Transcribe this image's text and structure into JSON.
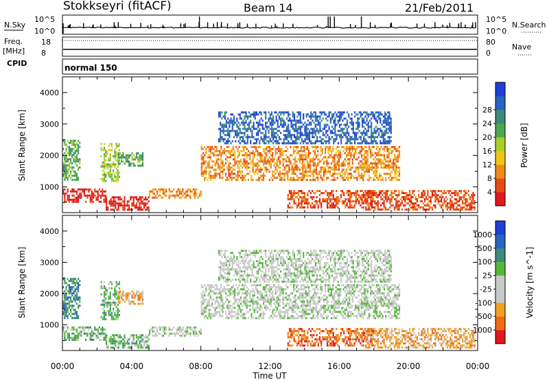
{
  "header": {
    "station": "Stokkseyri (fitACF)",
    "beam": "Beam 14",
    "date": "21/Feb/2011"
  },
  "top_strip": {
    "nsky_label": "N.Sky",
    "nsearch_label": "N.Search",
    "freq_label_1": "Freq.",
    "freq_label_2": "[MHz]",
    "nave_label": "Nave",
    "cpid_label": "CPID",
    "cpid_value": "normal 150",
    "noise_ticks": [
      "10^5",
      "10^0"
    ],
    "freq_ticks": [
      "18",
      "8"
    ],
    "nave_ticks": [
      "80",
      "0"
    ]
  },
  "colors": {
    "power": [
      "#1f3fd6",
      "#2b62c4",
      "#3d8a78",
      "#4fa552",
      "#a8cf2a",
      "#f2c414",
      "#ef8a1a",
      "#e84a14",
      "#e0181c"
    ],
    "velocity": [
      "#1f3fd6",
      "#2b62c4",
      "#3d8a78",
      "#56b83a",
      "#c8c8c8",
      "#c8c8c8",
      "#f0a020",
      "#ef6a14",
      "#e0181c"
    ]
  },
  "chart_data": [
    {
      "type": "heatmap",
      "title": "",
      "xlabel": "Time UT",
      "ylabel": "Slant Range [km]",
      "x_tick_labels": [
        "00:00",
        "04:00",
        "08:00",
        "12:00",
        "16:00",
        "20:00",
        "00:00"
      ],
      "y_tick_labels": [
        "1000",
        "2000",
        "3000",
        "4000"
      ],
      "xlim": [
        0,
        24
      ],
      "ylim": [
        180,
        4500
      ],
      "colorbar_label": "Power [dB]",
      "colorbar_ticks": [
        "4",
        "8",
        "12",
        "16",
        "20",
        "24",
        "28"
      ],
      "scatter_regions": [
        {
          "t0": 0.0,
          "t1": 2.5,
          "r0": 500,
          "r1": 950,
          "level": 8
        },
        {
          "t0": 0.0,
          "t1": 1.0,
          "r0": 1200,
          "r1": 2500,
          "level": 3
        },
        {
          "t0": 2.2,
          "t1": 3.3,
          "r0": 1200,
          "r1": 2400,
          "level": 4
        },
        {
          "t0": 3.2,
          "t1": 4.6,
          "r0": 1700,
          "r1": 2100,
          "level": 3
        },
        {
          "t0": 2.5,
          "t1": 5.0,
          "r0": 300,
          "r1": 700,
          "level": 8
        },
        {
          "t0": 5.0,
          "t1": 8.0,
          "r0": 650,
          "r1": 950,
          "level": 6
        },
        {
          "t0": 8.0,
          "t1": 19.5,
          "r0": 1200,
          "r1": 2300,
          "level": 6
        },
        {
          "t0": 9.0,
          "t1": 19.0,
          "r0": 2400,
          "r1": 3400,
          "level": 1
        },
        {
          "t0": 13.0,
          "t1": 18.0,
          "r0": 350,
          "r1": 900,
          "level": 7
        },
        {
          "t0": 17.5,
          "t1": 23.8,
          "r0": 300,
          "r1": 900,
          "level": 7
        }
      ]
    },
    {
      "type": "heatmap",
      "title": "",
      "xlabel": "Time UT",
      "ylabel": "Slant Range [km]",
      "x_tick_labels": [
        "00:00",
        "04:00",
        "08:00",
        "12:00",
        "16:00",
        "20:00",
        "00:00"
      ],
      "y_tick_labels": [
        "1000",
        "2000",
        "3000",
        "4000"
      ],
      "xlim": [
        0,
        24
      ],
      "ylim": [
        180,
        4500
      ],
      "colorbar_label": "Velocity [m s^-1]",
      "colorbar_ticks": [
        "1000",
        "500",
        "100",
        "25",
        "-25",
        "-100",
        "-500",
        "-1000"
      ],
      "scatter_regions": [
        {
          "t0": 0.0,
          "t1": 2.5,
          "r0": 500,
          "r1": 950,
          "level": 3
        },
        {
          "t0": 0.0,
          "t1": 1.0,
          "r0": 1200,
          "r1": 2500,
          "level": 2
        },
        {
          "t0": 2.2,
          "t1": 3.3,
          "r0": 1200,
          "r1": 2400,
          "level": 3
        },
        {
          "t0": 3.2,
          "t1": 4.6,
          "r0": 1700,
          "r1": 2100,
          "level": 6
        },
        {
          "t0": 2.5,
          "t1": 5.0,
          "r0": 300,
          "r1": 700,
          "level": 3
        },
        {
          "t0": 5.0,
          "t1": 8.0,
          "r0": 650,
          "r1": 950,
          "level": 4
        },
        {
          "t0": 8.0,
          "t1": 19.5,
          "r0": 1200,
          "r1": 2300,
          "level": 4
        },
        {
          "t0": 9.0,
          "t1": 19.0,
          "r0": 2400,
          "r1": 3400,
          "level": 4
        },
        {
          "t0": 13.0,
          "t1": 18.0,
          "r0": 350,
          "r1": 900,
          "level": 7
        },
        {
          "t0": 17.5,
          "t1": 23.8,
          "r0": 300,
          "r1": 900,
          "level": 6
        }
      ]
    }
  ]
}
